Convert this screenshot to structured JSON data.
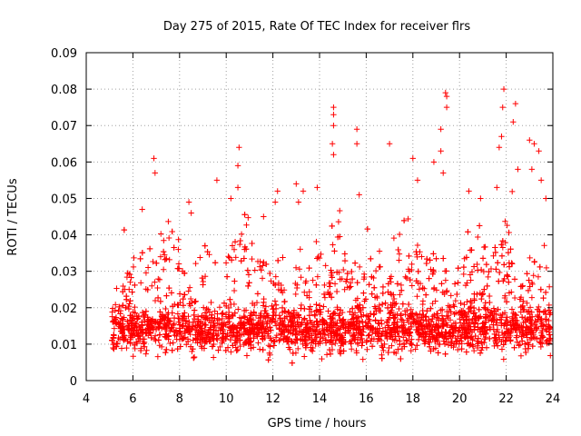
{
  "chart_data": {
    "type": "scatter",
    "title": "Day 275 of 2015, Rate Of TEC Index for receiver flrs",
    "xlabel": "GPS time / hours",
    "ylabel": "ROTI / TECUs",
    "xlim": [
      4,
      24
    ],
    "ylim": [
      0,
      0.09
    ],
    "x_ticks": [
      4,
      6,
      8,
      10,
      12,
      14,
      16,
      18,
      20,
      22,
      24
    ],
    "y_ticks": [
      0,
      0.01,
      0.02,
      0.03,
      0.04,
      0.05,
      0.06,
      0.07,
      0.08,
      0.09
    ],
    "x_tick_labels": [
      "4",
      "6",
      "8",
      "10",
      "12",
      "14",
      "16",
      "18",
      "20",
      "22",
      "24"
    ],
    "y_tick_labels": [
      "0",
      "0.01",
      "0.02",
      "0.03",
      "0.04",
      "0.05",
      "0.06",
      "0.07",
      "0.08",
      "0.09"
    ],
    "grid": true,
    "marker": "+",
    "series": [
      {
        "name": "ROTI",
        "color": "#ff0000",
        "x_range": [
          5.1,
          23.9
        ],
        "points": [
          [
            6.9,
            0.061
          ],
          [
            6.95,
            0.057
          ],
          [
            6.4,
            0.047
          ],
          [
            8.4,
            0.049
          ],
          [
            8.5,
            0.046
          ],
          [
            9.6,
            0.055
          ],
          [
            10.2,
            0.05
          ],
          [
            10.55,
            0.064
          ],
          [
            10.5,
            0.059
          ],
          [
            10.5,
            0.053
          ],
          [
            11.6,
            0.045
          ],
          [
            12.1,
            0.049
          ],
          [
            12.2,
            0.052
          ],
          [
            13.1,
            0.049
          ],
          [
            13.0,
            0.054
          ],
          [
            13.3,
            0.052
          ],
          [
            13.9,
            0.053
          ],
          [
            14.6,
            0.075
          ],
          [
            14.6,
            0.073
          ],
          [
            14.6,
            0.07
          ],
          [
            14.55,
            0.065
          ],
          [
            14.6,
            0.062
          ],
          [
            15.6,
            0.069
          ],
          [
            15.6,
            0.065
          ],
          [
            15.7,
            0.051
          ],
          [
            17.0,
            0.065
          ],
          [
            18.0,
            0.061
          ],
          [
            18.2,
            0.055
          ],
          [
            18.9,
            0.06
          ],
          [
            19.2,
            0.069
          ],
          [
            19.4,
            0.079
          ],
          [
            19.45,
            0.078
          ],
          [
            19.45,
            0.075
          ],
          [
            19.2,
            0.063
          ],
          [
            19.3,
            0.057
          ],
          [
            20.4,
            0.052
          ],
          [
            20.9,
            0.05
          ],
          [
            21.6,
            0.053
          ],
          [
            21.9,
            0.08
          ],
          [
            21.85,
            0.075
          ],
          [
            21.8,
            0.067
          ],
          [
            21.7,
            0.064
          ],
          [
            22.4,
            0.076
          ],
          [
            22.3,
            0.071
          ],
          [
            22.5,
            0.058
          ],
          [
            23.0,
            0.066
          ],
          [
            23.2,
            0.065
          ],
          [
            23.4,
            0.063
          ],
          [
            23.1,
            0.058
          ],
          [
            23.5,
            0.055
          ],
          [
            23.7,
            0.05
          ]
        ]
      }
    ]
  }
}
